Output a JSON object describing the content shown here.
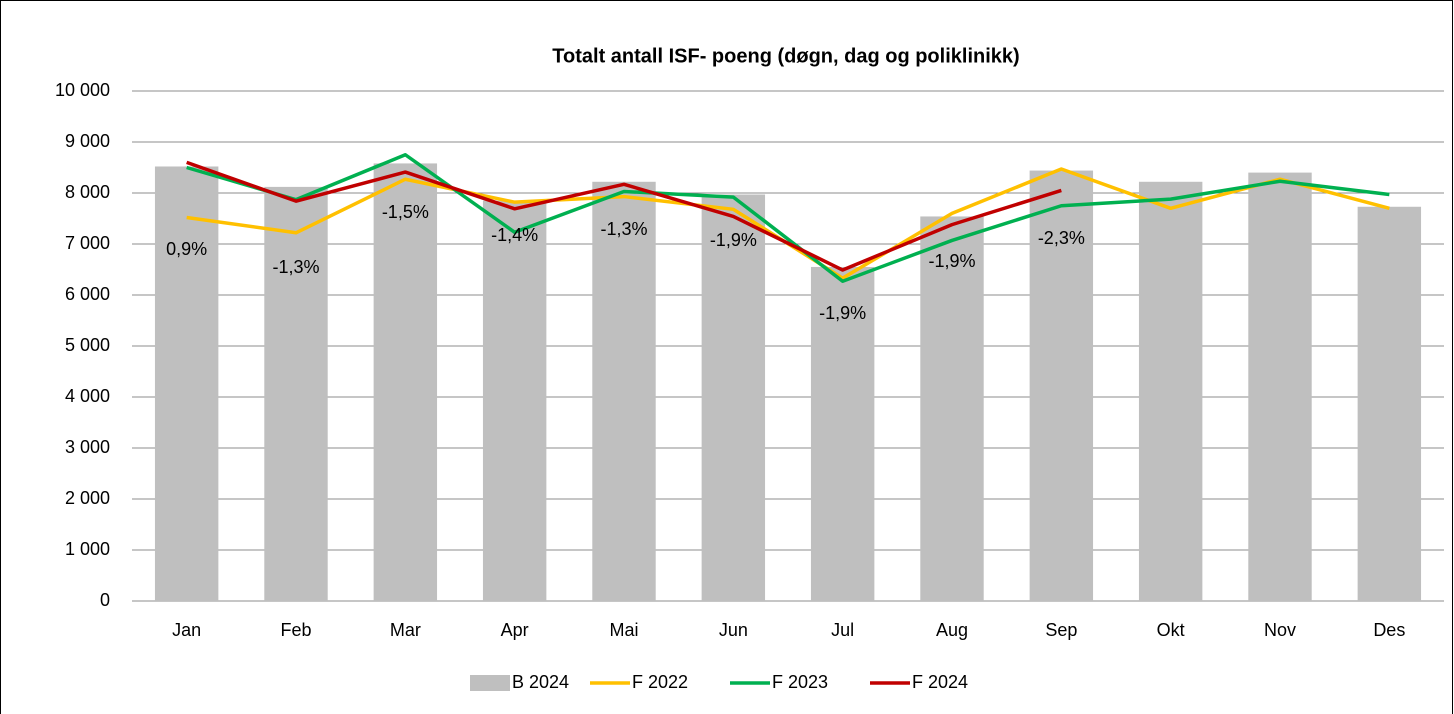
{
  "chart_data": {
    "type": "bar-line",
    "title": "Totalt antall ISF- poeng (døgn, dag og poliklinikk)",
    "categories": [
      "Jan",
      "Feb",
      "Mar",
      "Apr",
      "Mai",
      "Jun",
      "Jul",
      "Aug",
      "Sep",
      "Okt",
      "Nov",
      "Des"
    ],
    "series": [
      {
        "name": "B 2024",
        "type": "bar",
        "color": "#bfbfbf",
        "values": [
          8520,
          8120,
          8580,
          7850,
          8220,
          7970,
          6550,
          7540,
          8440,
          8220,
          8400,
          7730
        ]
      },
      {
        "name": "F 2022",
        "type": "line",
        "color": "#ffc000",
        "values": [
          7520,
          7220,
          8270,
          7820,
          7930,
          7680,
          6330,
          7600,
          8470,
          7700,
          8270,
          7700
        ]
      },
      {
        "name": "F 2023",
        "type": "line",
        "color": "#00b050",
        "values": [
          8500,
          7870,
          8750,
          7230,
          8030,
          7920,
          6270,
          7070,
          7750,
          7880,
          8230,
          7970
        ]
      },
      {
        "name": "F 2024",
        "type": "line",
        "color": "#c00000",
        "values": [
          8600,
          7840,
          8410,
          7690,
          8170,
          7540,
          6490,
          7380,
          8050,
          null,
          null,
          null
        ]
      }
    ],
    "annotations": [
      "0,9%",
      "-1,3%",
      "-1,5%",
      "-1,4%",
      "-1,3%",
      "-1,9%",
      "-1,9%",
      "-1,9%",
      "-2,3%"
    ],
    "ylim": [
      0,
      10000
    ],
    "yticks": [
      0,
      {
        "value": 1000,
        "label": "1 000"
      },
      {
        "value": 2000,
        "label": "2 000"
      },
      {
        "value": 3000,
        "label": "3 000"
      },
      {
        "value": 4000,
        "label": "4 000"
      },
      {
        "value": 5000,
        "label": "5 000"
      },
      {
        "value": 6000,
        "label": "6 000"
      },
      {
        "value": 7000,
        "label": "7 000"
      },
      {
        "value": 8000,
        "label": "8 000"
      },
      {
        "value": 9000,
        "label": "9 000"
      },
      {
        "value": 10000,
        "label": "10 000"
      }
    ],
    "grid": true,
    "legend": "bottom"
  }
}
